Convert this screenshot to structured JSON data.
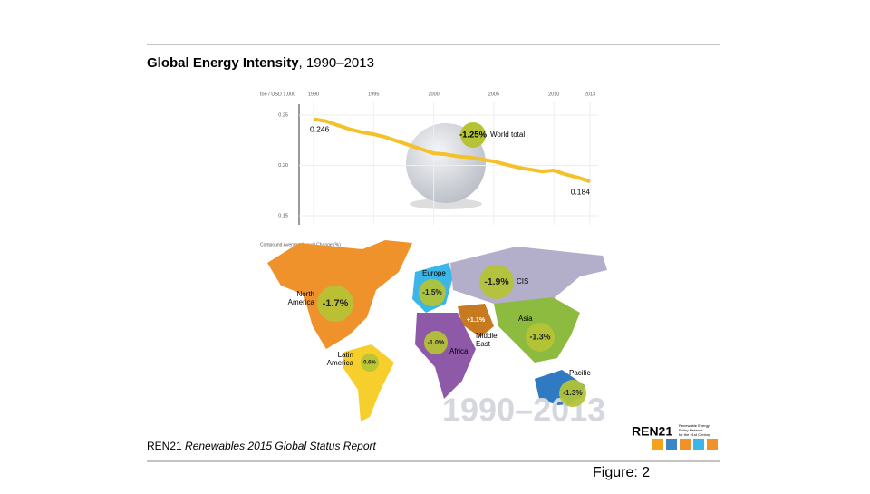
{
  "slide": {
    "title_bold": "Global Energy Intensity",
    "title_rest": ", 1990–2013",
    "footer_org": "REN21",
    "footer_report": "Renewables 2015 Global Status Report",
    "logo": "REN21",
    "logo_tagline": [
      "Renewable Energy",
      "Policy Network",
      "for the 21st Century"
    ],
    "caption": "Figure: 2"
  },
  "chart_data": {
    "type": "line",
    "y_label": "toe / USD 1,000",
    "x": [
      1990,
      1991,
      1992,
      1993,
      1994,
      1995,
      1996,
      1997,
      1998,
      1999,
      2000,
      2001,
      2002,
      2003,
      2004,
      2005,
      2006,
      2007,
      2008,
      2009,
      2010,
      2011,
      2012,
      2013
    ],
    "values": [
      0.246,
      0.244,
      0.24,
      0.236,
      0.233,
      0.231,
      0.228,
      0.224,
      0.22,
      0.216,
      0.212,
      0.211,
      0.209,
      0.208,
      0.206,
      0.204,
      0.201,
      0.198,
      0.196,
      0.194,
      0.195,
      0.191,
      0.188,
      0.184
    ],
    "color": "#f4c12a",
    "xlim": [
      1990,
      2013
    ],
    "xticks": [
      1990,
      1995,
      2000,
      2005,
      2010,
      2013
    ],
    "ylim": [
      0.15,
      0.25
    ],
    "yticks": [
      {
        "value": 0.15,
        "label": "0.15"
      },
      {
        "value": 0.2,
        "label": "0.20"
      },
      {
        "value": 0.25,
        "label": "0.25"
      }
    ],
    "grid": true,
    "annotation": {
      "change": "-1.25%",
      "text": "World total"
    }
  },
  "map": {
    "title": "Compound Average Annual Change (%)",
    "watermark": "1990–2013",
    "regions": [
      {
        "name": [
          "North",
          "America"
        ],
        "change": "-1.7%"
      },
      {
        "name": [
          "Latin",
          "America"
        ],
        "change": "0.6%"
      },
      {
        "name": [
          "Europe"
        ],
        "change": "-1.5%"
      },
      {
        "name": [
          "CIS"
        ],
        "change": "-1.9%"
      },
      {
        "name": [
          "Middle",
          "East"
        ],
        "change": "+1.1%"
      },
      {
        "name": [
          "Africa"
        ],
        "change": "-1.0%"
      },
      {
        "name": [
          "Asia"
        ],
        "change": "-1.3%"
      },
      {
        "name": [
          "Pacific"
        ],
        "change": "-1.3%"
      }
    ]
  }
}
